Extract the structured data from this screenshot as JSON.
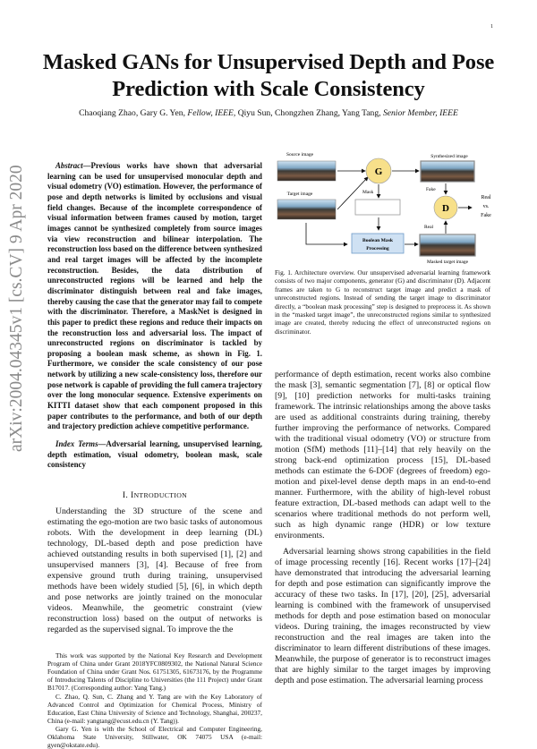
{
  "page_number": "1",
  "arxiv_stamp": "arXiv:2004.04345v1  [cs.CV]  9 Apr 2020",
  "title": "Masked GANs for Unsupervised Depth and Pose Prediction with Scale Consistency",
  "authors": {
    "a1": "Chaoqiang Zhao, Gary G. Yen, ",
    "a1_role": "Fellow, IEEE,",
    "a2": " Qiyu Sun, Chongzhen Zhang, Yang Tang, ",
    "a2_role": "Senior Member, IEEE"
  },
  "abstract": {
    "label": "Abstract",
    "text": "—Previous works have shown that adversarial learning can be used for unsupervised monocular depth and visual odometry (VO) estimation. However, the performance of pose and depth networks is limited by occlusions and visual field changes. Because of the incomplete correspondence of visual information between frames caused by motion, target images cannot be synthesized completely from source images via view reconstruction and bilinear interpolation. The reconstruction loss based on the difference between synthesized and real target images will be affected by the incomplete reconstruction. Besides, the data distribution of unreconstructed regions will be learned and help the discriminator distinguish between real and fake images, thereby causing the case that the generator may fail to compete with the discriminator. Therefore, a MaskNet is designed in this paper to predict these regions and reduce their impacts on the reconstruction loss and adversarial loss. The impact of unreconstructed regions on discriminator is tackled by proposing a boolean mask scheme, as shown in Fig. 1. Furthermore, we consider the scale consistency of our pose network by utilizing a new scale-consistency loss, therefore our pose network is capable of providing the full camera trajectory over the long monocular sequence. Extensive experiments on KITTI dataset show that each component proposed in this paper contributes to the performance, and both of our depth and trajectory prediction achieve competitive performance."
  },
  "index_terms": {
    "label": "Index Terms",
    "text": "—Adversarial learning, unsupervised learning, depth estimation, visual odometry, boolean mask, scale consistency"
  },
  "section": {
    "number": "I.",
    "first_letter": "I",
    "rest": "NTRODUCTION"
  },
  "intro_paragraph": "Understanding the 3D structure of the scene and estimating the ego-motion are two basic tasks of autonomous robots. With the development in deep learning (DL) technology, DL-based depth and pose prediction have achieved outstanding results in both supervised [1], [2] and unsupervised manners [3], [4]. Because of free from expensive ground truth during training, unsupervised methods have been widely studied [5], [6], in which depth and pose networks are jointly trained on the monocular videos. Meanwhile, the geometric constraint (view reconstruction loss) based on the output of networks is regarded as the supervised signal. To improve the the",
  "footnotes": [
    "This work was supported by the National Key Research and Development Program of China under Grant 2018YFC0809302, the National Natural Science Foundation of China under Grant Nos. 61751305, 61673176, by the Programme of Introducing Talents of Discipline to Universities (the 111 Project) under Grant B17017. (Corresponding author: Yang Tang.)",
    "C. Zhao, Q. Sun, C. Zhang and Y. Tang are with the Key Laboratory of Advanced Control and Optimization for Chemical Process, Ministry of Education, East China University of Science and Technology, Shanghai, 200237, China (e-mail: yangtang@ecust.edu.cn (Y. Tang)).",
    "Gary G. Yen is with the School of Electrical and Computer Engineering, Oklahoma State University, Stillwater, OK 74075 USA (e-mail: gyen@okstate.edu)."
  ],
  "figure": {
    "source_image": "Source image",
    "target_image": "Target image",
    "synthesized_image": "Synthesized image",
    "masked_target_image": "Masked target image",
    "generator": "G",
    "discriminator": "D",
    "mask": "Mask",
    "fake": "Fake",
    "real": "Real",
    "output_1": "Real",
    "output_2": "vs.",
    "output_3": "Fake",
    "boolean_1": "Boolean Mask",
    "boolean_2": "Processing",
    "colors": {
      "node_fill": "#f7e08a",
      "box_fill": "#cfe1f3",
      "box_stroke": "#6f9bc8"
    }
  },
  "caption": "Fig. 1.  Architecture overview. Our unsupervised adversarial learning framework consists of two major components, generator (G) and discriminator (D). Adjacent frames are taken to G to reconstruct target image and predict a mask of unreconstructed regions. Instead of sending the target image to discriminator directly, a “boolean mask processing” step is designed to preprocess it. As shown in the “masked target image”, the unreconstructed regions similar to synthesized image are created, thereby reducing the effect of unreconstructed regions on discriminator.",
  "right_paragraphs": [
    "performance of depth estimation, recent works also combine the mask [3], semantic segmentation [7], [8] or optical flow [9], [10] prediction networks for multi-tasks training framework. The intrinsic relationships among the above tasks are used as additional constraints during training, thereby further improving the performance of networks. Compared with the traditional visual odometry (VO) or structure from motion (SfM) methods [11]–[14] that rely heavily on the strong back-end optimization process [15], DL-based methods can estimate the 6-DOF (degrees of freedom) ego-motion and pixel-level dense depth maps in an end-to-end manner. Furthermore, with the ability of high-level robust feature extraction, DL-based methods can adapt well to the scenarios where traditional methods do not perform well, such as high dynamic range (HDR) or low texture environments.",
    "Adversarial learning shows strong capabilities in the field of image processing recently [16]. Recent works [17]–[24] have demonstrated that introducing the adversarial learning for depth and pose estimation can significantly improve the accuracy of these two tasks. In [17], [20], [25], adversarial learning is combined with the framework of unsupervised methods for depth and pose estimation based on monocular videos. During training, the images reconstructed by view reconstruction and the real images are taken into the discriminator to learn different distributions of these images. Meanwhile, the purpose of generator is to reconstruct images that are highly similar to the target images by improving depth and pose estimation. The adversarial learning process"
  ]
}
